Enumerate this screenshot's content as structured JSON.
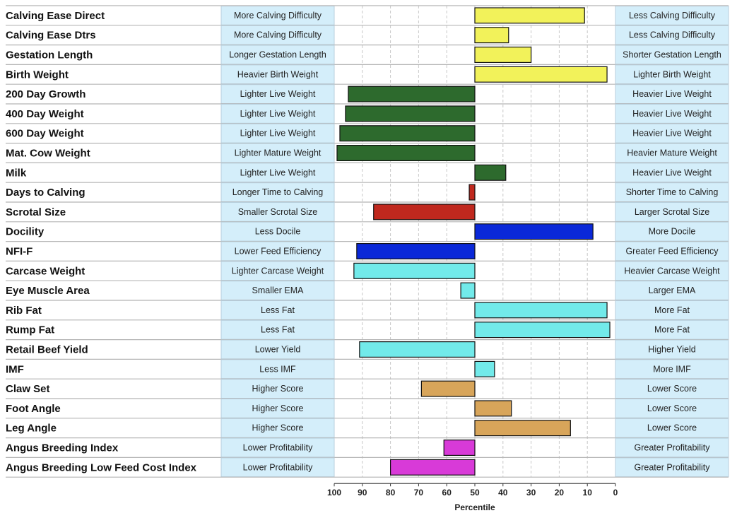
{
  "chart_data": {
    "type": "bar",
    "orientation": "horizontal",
    "title": "",
    "xlabel": "Percentile",
    "ylabel": "",
    "xlim": [
      100,
      0
    ],
    "baseline": 50,
    "x_ticks": [
      "100",
      "90",
      "80",
      "70",
      "60",
      "50",
      "40",
      "30",
      "20",
      "10",
      "0"
    ],
    "grid": true,
    "colors": {
      "yellow": "#f2f25a",
      "dark_green": "#2d6a2d",
      "red": "#c0281e",
      "blue": "#0a28d8",
      "cyan": "#72eaea",
      "tan": "#d8a55a",
      "magenta": "#d83ad8",
      "label_box": "#d4eefa"
    },
    "traits": [
      {
        "name": "Calving Ease Direct",
        "value": 11,
        "color": "yellow",
        "low_label": "More Calving Difficulty",
        "high_label": "Less Calving Difficulty"
      },
      {
        "name": "Calving Ease Dtrs",
        "value": 38,
        "color": "yellow",
        "low_label": "More Calving Difficulty",
        "high_label": "Less Calving Difficulty"
      },
      {
        "name": "Gestation Length",
        "value": 30,
        "color": "yellow",
        "low_label": "Longer Gestation Length",
        "high_label": "Shorter Gestation Length"
      },
      {
        "name": "Birth Weight",
        "value": 3,
        "color": "yellow",
        "low_label": "Heavier Birth Weight",
        "high_label": "Lighter Birth Weight"
      },
      {
        "name": "200 Day Growth",
        "value": 95,
        "color": "dark_green",
        "low_label": "Lighter Live Weight",
        "high_label": "Heavier Live Weight"
      },
      {
        "name": "400 Day Weight",
        "value": 96,
        "color": "dark_green",
        "low_label": "Lighter Live Weight",
        "high_label": "Heavier Live Weight"
      },
      {
        "name": "600 Day Weight",
        "value": 98,
        "color": "dark_green",
        "low_label": "Lighter Live Weight",
        "high_label": "Heavier Live Weight"
      },
      {
        "name": "Mat. Cow Weight",
        "value": 99,
        "color": "dark_green",
        "low_label": "Lighter Mature Weight",
        "high_label": "Heavier Mature Weight"
      },
      {
        "name": "Milk",
        "value": 39,
        "color": "dark_green",
        "low_label": "Lighter Live Weight",
        "high_label": "Heavier Live Weight"
      },
      {
        "name": "Days to Calving",
        "value": 52,
        "color": "red",
        "low_label": "Longer Time to Calving",
        "high_label": "Shorter Time to Calving"
      },
      {
        "name": "Scrotal Size",
        "value": 86,
        "color": "red",
        "low_label": "Smaller Scrotal Size",
        "high_label": "Larger Scrotal Size"
      },
      {
        "name": "Docility",
        "value": 8,
        "color": "blue",
        "low_label": "Less Docile",
        "high_label": "More Docile"
      },
      {
        "name": "NFI-F",
        "value": 92,
        "color": "blue",
        "low_label": "Lower Feed Efficiency",
        "high_label": "Greater Feed Efficiency"
      },
      {
        "name": "Carcase Weight",
        "value": 93,
        "color": "cyan",
        "low_label": "Lighter Carcase Weight",
        "high_label": "Heavier Carcase Weight"
      },
      {
        "name": "Eye Muscle Area",
        "value": 55,
        "color": "cyan",
        "low_label": "Smaller EMA",
        "high_label": "Larger EMA"
      },
      {
        "name": "Rib Fat",
        "value": 3,
        "color": "cyan",
        "low_label": "Less Fat",
        "high_label": "More Fat"
      },
      {
        "name": "Rump Fat",
        "value": 2,
        "color": "cyan",
        "low_label": "Less Fat",
        "high_label": "More Fat"
      },
      {
        "name": "Retail Beef Yield",
        "value": 91,
        "color": "cyan",
        "low_label": "Lower Yield",
        "high_label": "Higher Yield"
      },
      {
        "name": "IMF",
        "value": 43,
        "color": "cyan",
        "low_label": "Less IMF",
        "high_label": "More IMF"
      },
      {
        "name": "Claw Set",
        "value": 69,
        "color": "tan",
        "low_label": "Higher Score",
        "high_label": "Lower Score"
      },
      {
        "name": "Foot Angle",
        "value": 37,
        "color": "tan",
        "low_label": "Higher Score",
        "high_label": "Lower Score"
      },
      {
        "name": "Leg Angle",
        "value": 16,
        "color": "tan",
        "low_label": "Higher Score",
        "high_label": "Lower Score"
      },
      {
        "name": "Angus Breeding Index",
        "value": 61,
        "color": "magenta",
        "low_label": "Lower Profitability",
        "high_label": "Greater Profitability"
      },
      {
        "name": "Angus Breeding Low Feed Cost Index",
        "value": 80,
        "color": "magenta",
        "low_label": "Lower Profitability",
        "high_label": "Greater Profitability"
      }
    ]
  }
}
